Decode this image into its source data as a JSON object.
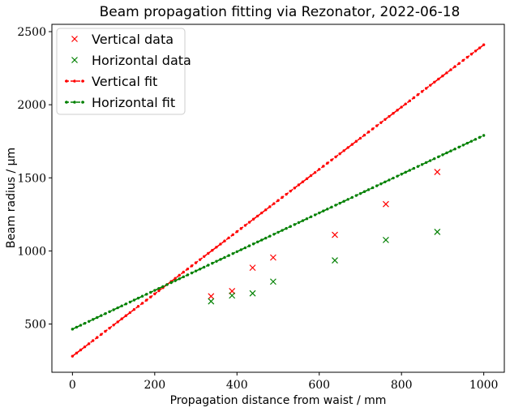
{
  "chart_data": {
    "type": "scatter",
    "title": "Beam propagation fitting via Rezonator, 2022-06-18",
    "xlabel": "Propagation distance from waist / mm",
    "ylabel": "Beam radius / μm",
    "xlim": [
      -50,
      1050
    ],
    "ylim": [
      170,
      2550
    ],
    "xticks": [
      0,
      200,
      400,
      600,
      800,
      1000
    ],
    "yticks": [
      500,
      1000,
      1500,
      2000,
      2500
    ],
    "grid": false,
    "legend_position": "upper-left",
    "series": [
      {
        "name": "Vertical data",
        "kind": "points",
        "marker": "x",
        "color": "#ff0000",
        "x": [
          337,
          388,
          438,
          488,
          638,
          762,
          887
        ],
        "y": [
          690,
          725,
          885,
          955,
          1110,
          1320,
          1540
        ]
      },
      {
        "name": "Horizontal data",
        "kind": "points",
        "marker": "x",
        "color": "#008000",
        "x": [
          337,
          388,
          438,
          488,
          638,
          762,
          887
        ],
        "y": [
          655,
          695,
          710,
          790,
          935,
          1075,
          1130
        ]
      },
      {
        "name": "Vertical fit",
        "kind": "fit",
        "marker": "dot",
        "color": "#ff0000",
        "x_start": 0,
        "x_end": 1000,
        "n_points": 101,
        "y_start": 280,
        "y_end": 2410
      },
      {
        "name": "Horizontal fit",
        "kind": "fit",
        "marker": "dot",
        "color": "#008000",
        "x_start": 0,
        "x_end": 1000,
        "n_points": 101,
        "y_start": 465,
        "y_end": 1790
      }
    ]
  }
}
